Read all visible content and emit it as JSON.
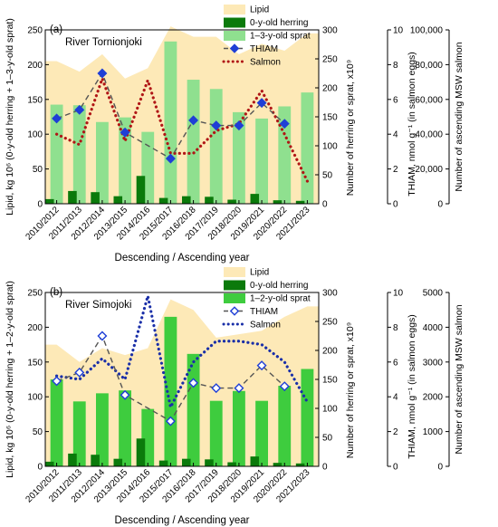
{
  "figure": {
    "background": "#ffffff"
  },
  "chart_data": [
    {
      "type": "bar",
      "panel_label": "(a)",
      "title": "River Tornionjoki",
      "categories": [
        "2010/2012",
        "2011/2013",
        "2012/2014",
        "2013/2015",
        "2014/2016",
        "2015/2017",
        "2016/2018",
        "2017/2019",
        "2018/2020",
        "2019/2021",
        "2020/2022",
        "2021/2023"
      ],
      "xlabel": "Descending / Ascending year",
      "left_axis": {
        "label": "Lipid, kg 10⁶ (0-y-old herring + 1–3-y-old sprat)",
        "range": [
          0,
          250
        ],
        "ticks": [
          0,
          50,
          100,
          150,
          200,
          250
        ]
      },
      "axis_herring_sprat": {
        "label": "Number of herring or sprat, x10⁹",
        "range": [
          0,
          300
        ],
        "ticks": [
          0,
          50,
          100,
          150,
          200,
          250,
          300
        ]
      },
      "axis_thiam": {
        "label": "THIAM, nmol g⁻¹ (in salmon eggs)",
        "range": [
          0,
          10
        ],
        "ticks": [
          0,
          2,
          4,
          6,
          8,
          10
        ]
      },
      "axis_salmon": {
        "label": "Number of ascending MSW salmon",
        "range": [
          0,
          100000
        ],
        "ticks": [
          "0",
          "20,000",
          "40,000",
          "60,000",
          "80,000",
          "100,000"
        ]
      },
      "series": [
        {
          "name": "Lipid",
          "kind": "area",
          "axis": "left",
          "color": "#fde9b7",
          "values": [
            205,
            190,
            215,
            180,
            195,
            255,
            240,
            240,
            215,
            230,
            220,
            245
          ]
        },
        {
          "name": "0-y-old herring",
          "kind": "bar",
          "axis": "herring_sprat",
          "color": "#0b7a0b",
          "values": [
            8,
            22,
            20,
            13,
            48,
            10,
            13,
            12,
            7,
            17,
            6,
            5
          ]
        },
        {
          "name": "1–3-y-old sprat",
          "kind": "bar",
          "axis": "herring_sprat",
          "color": "#8fe08f",
          "values": [
            171,
            170,
            141,
            149,
            124,
            280,
            214,
            198,
            158,
            147,
            168,
            192
          ]
        },
        {
          "name": "THIAM",
          "kind": "line",
          "axis": "thiam",
          "color": "#1f3fd6",
          "marker": "filled-diamond",
          "values": [
            4.9,
            5.4,
            7.5,
            4.1,
            null,
            2.6,
            4.8,
            4.5,
            4.5,
            5.8,
            4.6,
            null
          ]
        },
        {
          "name": "Salmon",
          "kind": "line",
          "axis": "salmon",
          "color": "#b01616",
          "style": "dotted",
          "values": [
            40000,
            34000,
            72000,
            36000,
            71000,
            29000,
            29000,
            42000,
            46000,
            65000,
            40000,
            13000
          ]
        }
      ]
    },
    {
      "type": "bar",
      "panel_label": "(b)",
      "title": "River Simojoki",
      "categories": [
        "2010/2012",
        "2011/2013",
        "2012/2014",
        "2013/2015",
        "2014/2016",
        "2015/2017",
        "2016/2018",
        "2017/2019",
        "2018/2020",
        "2019/2021",
        "2020/2022",
        "2021/2023"
      ],
      "xlabel": "Descending / Ascending year",
      "left_axis": {
        "label": "Lipid, kg 10⁶ (0-y-old herring + 1–2-y-old sprat)",
        "range": [
          0,
          250
        ],
        "ticks": [
          0,
          50,
          100,
          150,
          200,
          250
        ]
      },
      "axis_herring_sprat": {
        "label": "Number of herring or sprat, x10⁹",
        "range": [
          0,
          300
        ],
        "ticks": [
          0,
          50,
          100,
          150,
          200,
          250,
          300
        ]
      },
      "axis_thiam": {
        "label": "THIAM, nmol g⁻¹ (in salmon eggs)",
        "range": [
          0,
          10
        ],
        "ticks": [
          0,
          2,
          4,
          6,
          8,
          10
        ]
      },
      "axis_salmon": {
        "label": "Number of ascending MSW salmon",
        "range": [
          0,
          5000
        ],
        "ticks": [
          "0",
          "1000",
          "2000",
          "3000",
          "4000",
          "5000"
        ]
      },
      "series": [
        {
          "name": "Lipid",
          "kind": "area",
          "axis": "left",
          "color": "#fde9b7",
          "values": [
            175,
            150,
            170,
            160,
            170,
            240,
            225,
            185,
            190,
            195,
            215,
            230
          ]
        },
        {
          "name": "0-y-old herring",
          "kind": "bar",
          "axis": "herring_sprat",
          "color": "#0b7a0b",
          "values": [
            8,
            22,
            20,
            13,
            48,
            10,
            13,
            12,
            7,
            17,
            6,
            5
          ]
        },
        {
          "name": "1–2-y-old sprat",
          "kind": "bar",
          "axis": "herring_sprat",
          "color": "#3ecc3e",
          "values": [
            150,
            112,
            126,
            131,
            99,
            258,
            194,
            113,
            130,
            113,
            139,
            168
          ]
        },
        {
          "name": "THIAM",
          "kind": "line",
          "axis": "thiam",
          "color": "#1f3fd6",
          "marker": "open-diamond",
          "values": [
            4.9,
            5.4,
            7.5,
            4.1,
            null,
            2.6,
            4.8,
            4.5,
            4.5,
            5.8,
            4.6,
            null
          ]
        },
        {
          "name": "Salmon",
          "kind": "line",
          "axis": "salmon",
          "color": "#1a2fa8",
          "style": "dotted",
          "values": [
            2600,
            2500,
            3100,
            2500,
            4900,
            1700,
            3000,
            3600,
            3600,
            3500,
            3000,
            1850
          ]
        }
      ]
    }
  ]
}
